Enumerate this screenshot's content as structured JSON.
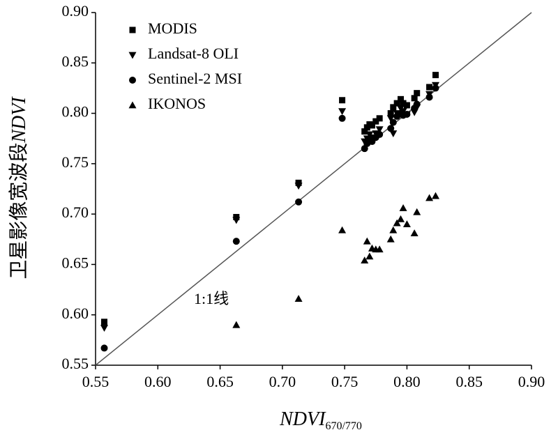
{
  "chart_data": {
    "type": "scatter",
    "xlabel": {
      "main": "NDVI",
      "sub": "670/770"
    },
    "ylabel": {
      "main": "卫星影像宽波段",
      "italic": "NDVI"
    },
    "annotation": "1:1线",
    "identity_line": true,
    "legend": "upper left",
    "xlim": [
      0.55,
      0.9
    ],
    "ylim": [
      0.55,
      0.9
    ],
    "xticks": [
      0.55,
      {
        "value": 0.6,
        "label": "0.60"
      },
      0.65,
      {
        "value": 0.7,
        "label": "0.70"
      },
      0.75,
      {
        "value": 0.8,
        "label": "0.80"
      },
      0.85,
      {
        "value": 0.9,
        "label": "0.90"
      }
    ],
    "yticks": [
      0.55,
      {
        "value": 0.6,
        "label": "0.60"
      },
      0.65,
      {
        "value": 0.7,
        "label": "0.70"
      },
      0.75,
      {
        "value": 0.8,
        "label": "0.80"
      },
      0.85,
      {
        "value": 0.9,
        "label": "0.90"
      }
    ],
    "x": [
      0.557,
      0.663,
      0.713,
      0.748,
      0.766,
      0.768,
      0.77,
      0.772,
      0.775,
      0.778,
      0.787,
      0.789,
      0.792,
      0.795,
      0.797,
      0.8,
      0.806,
      0.808,
      0.818,
      0.823
    ],
    "series": [
      {
        "name": "MODIS",
        "marker": "square",
        "color": "#000000",
        "values": [
          0.593,
          0.697,
          0.731,
          0.813,
          0.782,
          0.786,
          0.789,
          0.788,
          0.792,
          0.795,
          0.8,
          0.806,
          0.81,
          0.814,
          0.81,
          0.808,
          0.815,
          0.82,
          0.826,
          0.838
        ]
      },
      {
        "name": "Landsat-8 OLI",
        "marker": "triangle-down",
        "color": "#000000",
        "values": [
          0.587,
          0.694,
          0.728,
          0.802,
          0.772,
          0.775,
          0.779,
          0.776,
          0.78,
          0.784,
          0.795,
          0.78,
          0.8,
          0.805,
          0.802,
          0.799,
          0.801,
          0.806,
          0.819,
          0.828
        ]
      },
      {
        "name": "Sentinel-2 MSI",
        "marker": "circle",
        "color": "#000000",
        "values": [
          0.567,
          0.673,
          0.712,
          0.795,
          0.765,
          0.77,
          0.774,
          0.772,
          0.776,
          0.779,
          0.785,
          0.791,
          0.797,
          0.8,
          0.798,
          0.799,
          0.805,
          0.809,
          0.816,
          0.825
        ]
      },
      {
        "name": "IKONOS",
        "marker": "triangle-up",
        "color": "#000000",
        "values": [
          null,
          0.59,
          0.616,
          0.684,
          0.654,
          0.673,
          0.658,
          0.666,
          0.665,
          0.665,
          0.675,
          0.684,
          0.691,
          0.695,
          0.706,
          0.69,
          0.681,
          0.702,
          0.716,
          0.718
        ]
      }
    ]
  }
}
